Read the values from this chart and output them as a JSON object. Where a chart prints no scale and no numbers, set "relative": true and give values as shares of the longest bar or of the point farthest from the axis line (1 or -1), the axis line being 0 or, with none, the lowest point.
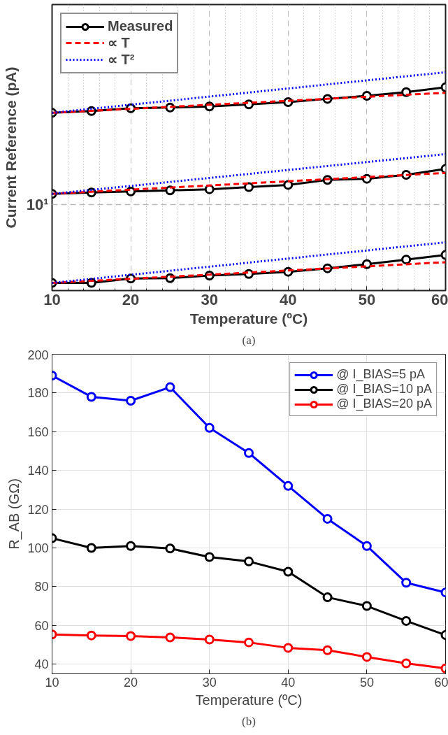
{
  "chart_data": [
    {
      "type": "line",
      "xlabel": "Temperature (ºC)",
      "ylabel": "Current Reference (pA)",
      "relative": true,
      "xlim": [
        10,
        60
      ],
      "xticks": [
        10,
        20,
        30,
        40,
        50,
        60,
        {
          "value": 12,
          "label": null
        },
        {
          "value": 14,
          "label": null
        },
        {
          "value": 16,
          "label": null
        },
        {
          "value": 18,
          "label": null
        },
        {
          "value": 22,
          "label": null
        },
        {
          "value": 24,
          "label": null
        },
        {
          "value": 26,
          "label": null
        },
        {
          "value": 28,
          "label": null
        },
        {
          "value": 32,
          "label": null
        },
        {
          "value": 34,
          "label": null
        },
        {
          "value": 36,
          "label": null
        },
        {
          "value": 38,
          "label": null
        },
        {
          "value": 42,
          "label": null
        },
        {
          "value": 44,
          "label": null
        },
        {
          "value": 46,
          "label": null
        },
        {
          "value": 48,
          "label": null
        },
        {
          "value": 52,
          "label": null
        },
        {
          "value": 54,
          "label": null
        },
        {
          "value": 56,
          "label": null
        },
        {
          "value": 58,
          "label": null
        }
      ],
      "grid": "x",
      "legend": "top left",
      "ref_lines": [
        {
          "axis": "y",
          "value": 0.394,
          "color": "#bbbbbb",
          "line_style": "dashed"
        }
      ],
      "annotations": [
        "10¹",
        "(a)"
      ],
      "series": [
        {
          "name": "Measured",
          "color": "#000000",
          "line_style": "solid",
          "marker": "circle",
          "x": [
            10,
            15,
            20,
            25,
            30,
            35,
            40,
            45,
            50,
            55,
            60
          ],
          "values": [
            0.814,
            0.822,
            0.835,
            0.838,
            0.843,
            0.853,
            0.863,
            0.878,
            0.892,
            0.909,
            0.931
          ]
        },
        {
          "name": "∝ T",
          "color": "#ff0000",
          "line_style": "dashed",
          "marker": "none",
          "x": [
            10,
            60
          ],
          "values": [
            0.814,
            0.906
          ]
        },
        {
          "name": "∝ T²",
          "color": "#0000ff",
          "line_style": "dotted",
          "marker": "none",
          "x": [
            10,
            60
          ],
          "values": [
            0.814,
            1
          ]
        },
        {
          "color": "#000000",
          "line_style": "solid",
          "marker": "circle",
          "x": [
            10,
            15,
            20,
            25,
            30,
            35,
            40,
            45,
            50,
            55,
            60
          ],
          "values": [
            0.443,
            0.449,
            0.454,
            0.459,
            0.464,
            0.474,
            0.484,
            0.507,
            0.512,
            0.53,
            0.557
          ]
        },
        {
          "color": "#ff0000",
          "line_style": "dashed",
          "marker": "none",
          "x": [
            10,
            60
          ],
          "values": [
            0.443,
            0.539
          ]
        },
        {
          "color": "#0000ff",
          "line_style": "dotted",
          "marker": "none",
          "x": [
            10,
            60
          ],
          "values": [
            0.443,
            0.625
          ]
        },
        {
          "color": "#000000",
          "line_style": "solid",
          "marker": "circle",
          "x": [
            10,
            15,
            20,
            25,
            30,
            35,
            40,
            45,
            50,
            55,
            60
          ],
          "values": [
            0.035,
            0.035,
            0.055,
            0.057,
            0.069,
            0.076,
            0.086,
            0.102,
            0.121,
            0.142,
            0.163
          ]
        },
        {
          "color": "#ff0000",
          "line_style": "dashed",
          "marker": "none",
          "x": [
            10,
            60
          ],
          "values": [
            0.035,
            0.13
          ]
        },
        {
          "color": "#0000ff",
          "line_style": "dotted",
          "marker": "none",
          "x": [
            10,
            60
          ],
          "values": [
            0.035,
            0.221
          ]
        }
      ]
    },
    {
      "type": "line",
      "xlabel": "Temperature (ºC)",
      "ylabel": "R_AB (GΩ)",
      "xlim": [
        10,
        60
      ],
      "ylim": [
        35,
        200
      ],
      "xticks": [
        10,
        20,
        30,
        40,
        50,
        60
      ],
      "yticks": [
        40,
        60,
        80,
        100,
        120,
        140,
        160,
        180,
        200
      ],
      "grid": true,
      "legend": "top right",
      "marker": "circle",
      "line_style": "solid",
      "annotations": [
        "(b)"
      ],
      "series": [
        {
          "name": "@ I_BIAS=5 pA",
          "color": "#0000ff",
          "x": [
            10,
            15,
            20,
            25,
            30,
            35,
            40,
            45,
            50,
            55,
            60
          ],
          "values": [
            189,
            178,
            176,
            183,
            162,
            149,
            132,
            115,
            101,
            82,
            77
          ]
        },
        {
          "name": "@ I_BIAS=10 pA",
          "color": "#000000",
          "x": [
            10,
            15,
            20,
            25,
            30,
            35,
            40,
            45,
            50,
            55,
            60
          ],
          "values": [
            105,
            100,
            101,
            99.7,
            95.3,
            93,
            87.7,
            74.5,
            70,
            62.3,
            55
          ]
        },
        {
          "name": "@ I_BIAS=20 pA",
          "color": "#ff0000",
          "x": [
            10,
            15,
            20,
            25,
            30,
            35,
            40,
            45,
            50,
            55,
            60
          ],
          "values": [
            55.3,
            54.8,
            54.5,
            53.8,
            52.7,
            51.2,
            48.4,
            47.2,
            43.7,
            40.4,
            37.8
          ]
        }
      ]
    }
  ]
}
